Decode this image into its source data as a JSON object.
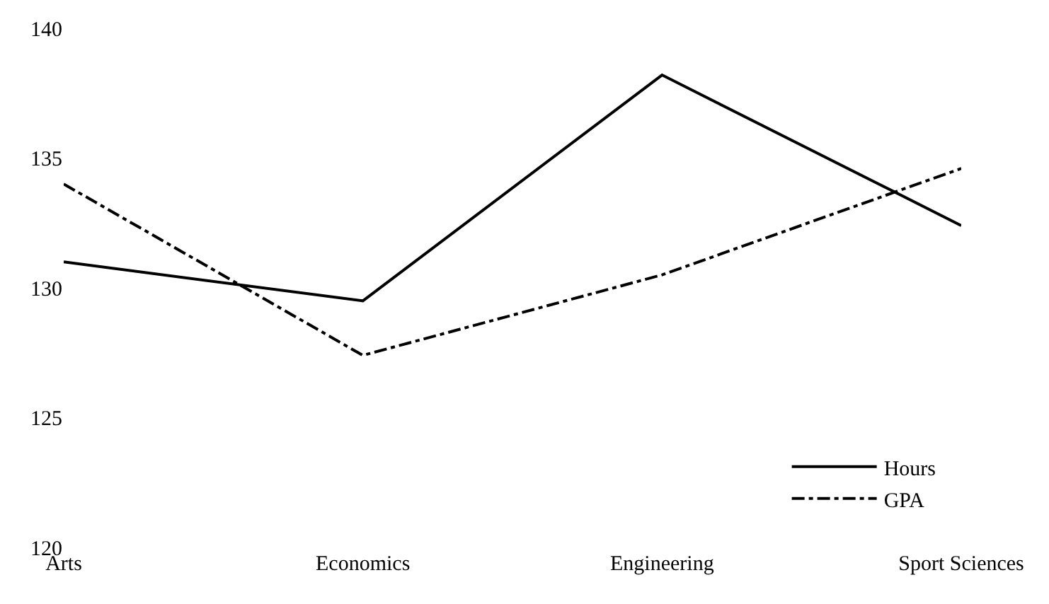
{
  "chart_data": {
    "type": "line",
    "categories": [
      "Arts",
      "Economics",
      "Engineering",
      "Sport Sciences"
    ],
    "series": [
      {
        "name": "Hours",
        "color": "#000000",
        "line_style": "solid",
        "values": [
          131,
          129.5,
          138.2,
          132.4
        ]
      },
      {
        "name": "GPA",
        "color": "#000000",
        "line_style": "dashed",
        "values": [
          134,
          127.4,
          130.5,
          134.6
        ]
      }
    ],
    "ylim": [
      120,
      140
    ],
    "yticks": [
      120,
      125,
      130,
      135,
      140
    ],
    "legend": "bottom right",
    "marker": "none"
  }
}
